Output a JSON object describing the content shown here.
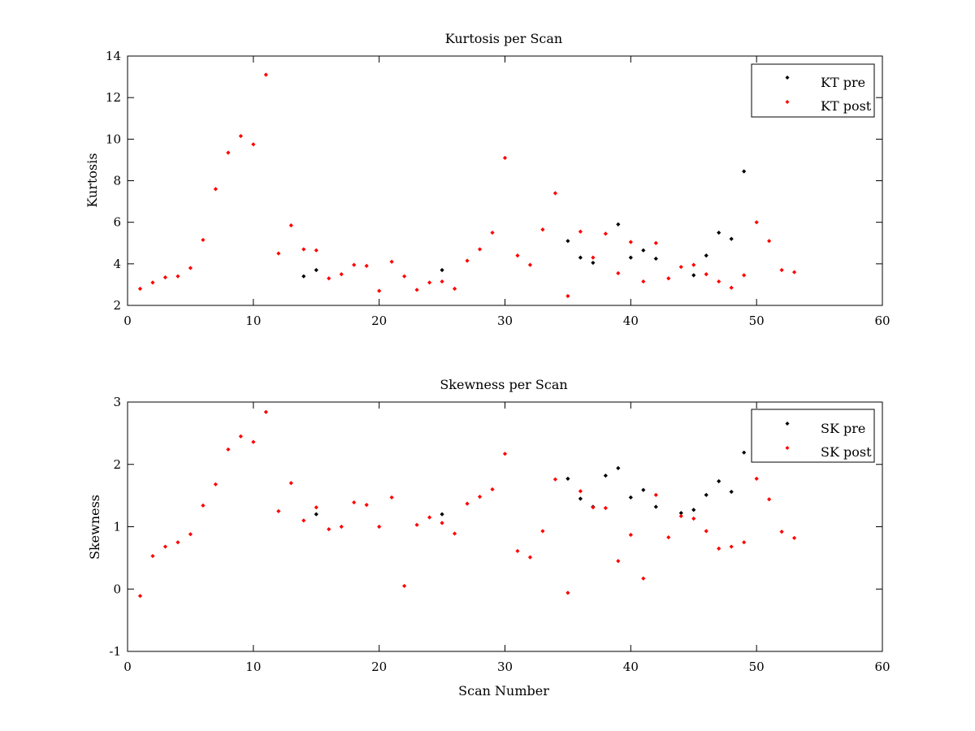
{
  "chart_data": [
    {
      "type": "scatter",
      "title": "Kurtosis per Scan",
      "xlabel": "",
      "ylabel": "Kurtosis",
      "xlim": [
        0,
        60
      ],
      "ylim": [
        2,
        14
      ],
      "xticks": [
        0,
        10,
        20,
        30,
        40,
        50,
        60
      ],
      "yticks": [
        2,
        4,
        6,
        8,
        10,
        12,
        14
      ],
      "grid": false,
      "legend_position": "top-right",
      "series": [
        {
          "name": "KT pre",
          "color": "#000000",
          "marker": "diamond",
          "x": [
            14,
            15,
            25,
            35,
            36,
            37,
            39,
            40,
            41,
            42,
            45,
            46,
            47,
            48,
            49
          ],
          "y": [
            3.4,
            3.7,
            3.7,
            5.1,
            4.3,
            4.05,
            5.9,
            4.3,
            4.65,
            4.25,
            3.45,
            4.4,
            5.5,
            5.2,
            8.45
          ]
        },
        {
          "name": "KT post",
          "color": "#ff0000",
          "marker": "diamond",
          "x": [
            1,
            2,
            3,
            4,
            5,
            6,
            7,
            8,
            9,
            10,
            11,
            12,
            13,
            14,
            15,
            16,
            17,
            18,
            19,
            20,
            21,
            22,
            23,
            24,
            25,
            26,
            27,
            28,
            29,
            30,
            31,
            32,
            33,
            34,
            35,
            36,
            37,
            38,
            39,
            40,
            41,
            42,
            43,
            44,
            45,
            46,
            47,
            48,
            49,
            50,
            51,
            52,
            53
          ],
          "y": [
            2.8,
            3.1,
            3.35,
            3.4,
            3.8,
            5.15,
            7.6,
            9.35,
            10.15,
            9.75,
            13.1,
            4.5,
            5.85,
            4.7,
            4.65,
            3.3,
            3.5,
            3.95,
            3.9,
            2.7,
            4.1,
            3.4,
            2.75,
            3.1,
            3.15,
            2.8,
            4.15,
            4.7,
            5.5,
            9.1,
            4.4,
            3.95,
            5.65,
            7.4,
            2.45,
            5.55,
            4.3,
            5.45,
            3.55,
            5.05,
            3.15,
            5.0,
            3.3,
            3.85,
            3.95,
            3.5,
            3.15,
            2.85,
            3.45,
            6.0,
            5.1,
            3.7,
            3.6
          ]
        }
      ]
    },
    {
      "type": "scatter",
      "title": "Skewness per Scan",
      "xlabel": "Scan Number",
      "ylabel": "Skewness",
      "xlim": [
        0,
        60
      ],
      "ylim": [
        -1,
        3
      ],
      "xticks": [
        0,
        10,
        20,
        30,
        40,
        50,
        60
      ],
      "yticks": [
        -1,
        0,
        1,
        2,
        3
      ],
      "grid": false,
      "legend_position": "top-right",
      "series": [
        {
          "name": "SK pre",
          "color": "#000000",
          "marker": "diamond",
          "x": [
            15,
            25,
            35,
            36,
            37,
            38,
            39,
            40,
            41,
            42,
            44,
            45,
            46,
            47,
            48,
            49
          ],
          "y": [
            1.2,
            1.2,
            1.77,
            1.45,
            1.32,
            1.82,
            1.94,
            1.47,
            1.59,
            1.32,
            1.22,
            1.27,
            1.51,
            1.73,
            1.56,
            2.19
          ]
        },
        {
          "name": "SK post",
          "color": "#ff0000",
          "marker": "diamond",
          "x": [
            1,
            2,
            3,
            4,
            5,
            6,
            7,
            8,
            9,
            10,
            11,
            12,
            13,
            14,
            15,
            16,
            17,
            18,
            19,
            20,
            21,
            22,
            23,
            24,
            25,
            26,
            27,
            28,
            29,
            30,
            31,
            32,
            33,
            34,
            35,
            36,
            37,
            38,
            39,
            40,
            41,
            42,
            43,
            44,
            45,
            46,
            47,
            48,
            49,
            50,
            51,
            52,
            53
          ],
          "y": [
            -0.11,
            0.53,
            0.68,
            0.75,
            0.88,
            1.34,
            1.68,
            2.24,
            2.45,
            2.36,
            2.84,
            1.25,
            1.7,
            1.1,
            1.31,
            0.96,
            1.0,
            1.39,
            1.35,
            1.0,
            1.47,
            0.05,
            1.03,
            1.15,
            1.06,
            0.89,
            1.37,
            1.48,
            1.6,
            2.17,
            0.61,
            0.51,
            0.93,
            1.76,
            -0.06,
            1.57,
            1.31,
            1.3,
            0.45,
            0.87,
            0.17,
            1.51,
            0.83,
            1.17,
            1.13,
            0.93,
            0.65,
            0.68,
            0.75,
            1.77,
            1.44,
            0.92,
            0.82
          ]
        }
      ]
    }
  ]
}
